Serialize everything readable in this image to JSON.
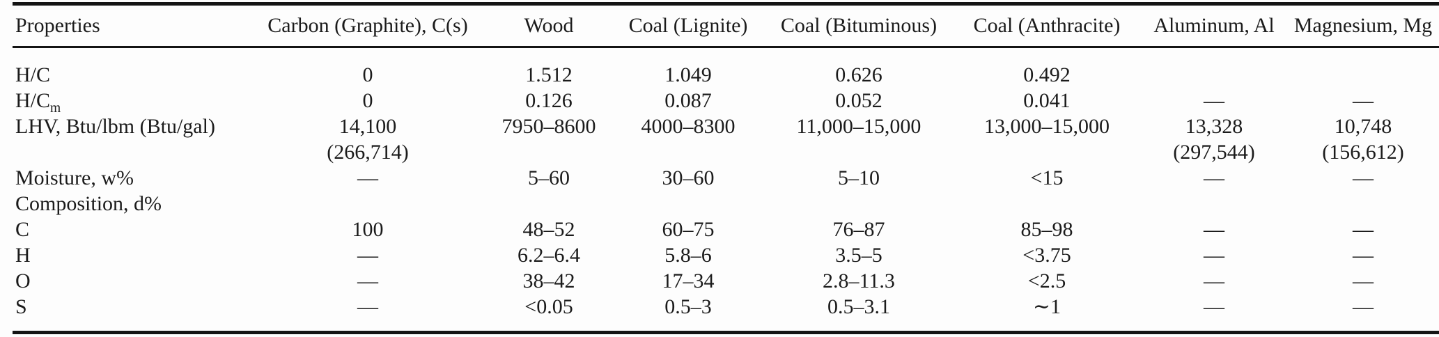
{
  "colors": {
    "background": "#fdfdfd",
    "text": "#1b1b1b",
    "rule": "#141414"
  },
  "table": {
    "columns": [
      {
        "label": "Properties"
      },
      {
        "label": "Carbon (Graphite), C(s)"
      },
      {
        "label": "Wood"
      },
      {
        "label": "Coal (Lignite)"
      },
      {
        "label": "Coal (Bituminous)"
      },
      {
        "label": "Coal (Anthracite)"
      },
      {
        "label": "Aluminum, Al"
      },
      {
        "label": "Magnesium, Mg"
      }
    ],
    "rows": [
      {
        "property": "H/C",
        "values": [
          "0",
          "1.512",
          "1.049",
          "0.626",
          "0.492",
          "",
          ""
        ]
      },
      {
        "property": "H/C",
        "property_sub": "m",
        "values": [
          "0",
          "0.126",
          "0.087",
          "0.052",
          "0.041",
          "—",
          "—"
        ]
      },
      {
        "property": "LHV, Btu/lbm (Btu/gal)",
        "values": [
          "14,100\n(266,714)",
          "7950–8600",
          "4000–8300",
          "11,000–15,000",
          "13,000–15,000",
          "13,328\n(297,544)",
          "10,748\n(156,612)"
        ]
      },
      {
        "property": "Moisture, w%",
        "values": [
          "—",
          "5–60",
          "30–60",
          "5–10",
          "<15",
          "—",
          "—"
        ]
      },
      {
        "property": "Composition, d%",
        "values": [
          "",
          "",
          "",
          "",
          "",
          "",
          ""
        ]
      },
      {
        "property": "C",
        "values": [
          "100",
          "48–52",
          "60–75",
          "76–87",
          "85–98",
          "—",
          "—"
        ]
      },
      {
        "property": "H",
        "values": [
          "—",
          "6.2–6.4",
          "5.8–6",
          "3.5–5",
          "<3.75",
          "—",
          "—"
        ]
      },
      {
        "property": "O",
        "values": [
          "—",
          "38–42",
          "17–34",
          "2.8–11.3",
          "<2.5",
          "—",
          "—"
        ]
      },
      {
        "property": "S",
        "values": [
          "—",
          "<0.05",
          "0.5–3",
          "0.5–3.1",
          "∼1",
          "—",
          "—"
        ]
      }
    ]
  }
}
